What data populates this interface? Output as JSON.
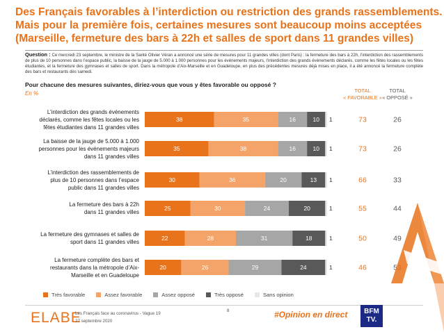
{
  "title": {
    "line1": "Des Français favorables à l’interdiction ou restriction des grands rassemblements.",
    "line2": "Mais pour la première fois, certaines mesures sont beaucoup moins acceptées",
    "line3": "(Marseille, fermeture des bars à 22h et salles de sport dans 11 grandes villes)"
  },
  "question": {
    "label": "Question :",
    "text": "Ce mercredi 23 septembre, le ministre de la Santé Olivier Véran a annoncé une série de mesures pour 11 grandes villes (dont Paris) : la fermeture des bars à 22h, l’interdiction des rassemblements de plus de 10 personnes dans l’espace public, la baisse de la jauge de 5.000 à 1.000 personnes pour les événements majeurs, l’interdiction des grands événements déclarés, comme les fêtes locales ou les fêtes étudiantes, et la fermeture des gymnases et salles de sport. Dans la métropole d’Aix-Marseille et en Guadeloupe, en plus des précédentes mesures déjà mises en place, il a été annoncé la fermeture complète des bars et restaurants dès samedi."
  },
  "prompt": "Pour chacune des mesures suivantes, diriez-vous que vous y êtes favorable ou opposé ?",
  "unit": "En %",
  "columns": {
    "favorable_line1": "TOTAL",
    "favorable_line2": "« FAVORABLE »",
    "oppose_line1": "TOTAL",
    "oppose_line2": "« OPPOSÉ »"
  },
  "rows": [
    {
      "lines": [
        "L’interdiction des grands événements",
        "déclarés, comme les fêtes locales ou les",
        "fêtes étudiantes dans 11 grandes villes"
      ]
    },
    {
      "lines": [
        "La baisse de la jauge de 5.000 à 1.000",
        "personnes pour les événements majeurs",
        "dans 11 grandes villes"
      ]
    },
    {
      "lines": [
        "L’interdiction des rassemblements de",
        "plus de 10 personnes dans l’espace",
        "public dans 11 grandes villes"
      ]
    },
    {
      "lines": [
        "La fermeture des bars à 22h",
        "dans 11 grandes villes"
      ]
    },
    {
      "lines": [
        "La fermeture des gymnases et salles de",
        "sport dans 11 grandes villes"
      ]
    },
    {
      "lines": [
        "La fermeture complète des bars et",
        "restaurants dans la métropole d’Aix-",
        "Marseille et en Guadeloupe"
      ]
    }
  ],
  "chart_data": {
    "type": "bar",
    "orientation": "horizontal",
    "stacked": true,
    "unit": "En %",
    "categories": [
      "L’interdiction des grands événements déclarés, comme les fêtes locales ou les fêtes étudiantes dans 11 grandes villes",
      "La baisse de la jauge de 5.000 à 1.000 personnes pour les événements majeurs dans 11 grandes villes",
      "L’interdiction des rassemblements de plus de 10 personnes dans l’espace public dans 11 grandes villes",
      "La fermeture des bars à 22h dans 11 grandes villes",
      "La fermeture des gymnases et salles de sport dans 11 grandes villes",
      "La fermeture complète des bars et restaurants dans la métropole d’Aix-Marseille et en Guadeloupe"
    ],
    "series": [
      {
        "name": "Très favorable",
        "color": "#e8731b",
        "values": [
          38,
          35,
          30,
          25,
          22,
          20
        ]
      },
      {
        "name": "Assez favorable",
        "color": "#f4a469",
        "values": [
          35,
          38,
          36,
          30,
          28,
          26
        ]
      },
      {
        "name": "Assez opposé",
        "color": "#a6a6a6",
        "values": [
          16,
          16,
          20,
          24,
          31,
          29
        ]
      },
      {
        "name": "Très opposé",
        "color": "#595959",
        "values": [
          10,
          10,
          13,
          20,
          18,
          24
        ]
      },
      {
        "name": "Sans opinion",
        "color": "#e7e7e7",
        "values": [
          1,
          1,
          1,
          1,
          1,
          1
        ]
      }
    ],
    "total_favorable": [
      73,
      73,
      66,
      55,
      50,
      46
    ],
    "total_oppose": [
      26,
      26,
      33,
      44,
      49,
      53
    ],
    "xlim": [
      0,
      100
    ],
    "legend_position": "bottom",
    "grid": false
  },
  "footer": {
    "logo": "ELABE",
    "survey_line1": "Les Français face au coronavirus - Vague 19",
    "survey_line2": "27 septembre 2020",
    "page": "8",
    "hashtag": "#Opinion en direct",
    "partner_line1": "BFM",
    "partner_line2": "TV."
  },
  "colors": {
    "accent": "#e8731b",
    "accent_light": "#f4a469",
    "favorable_total": "#e8731b",
    "oppose_total": "#595959"
  }
}
